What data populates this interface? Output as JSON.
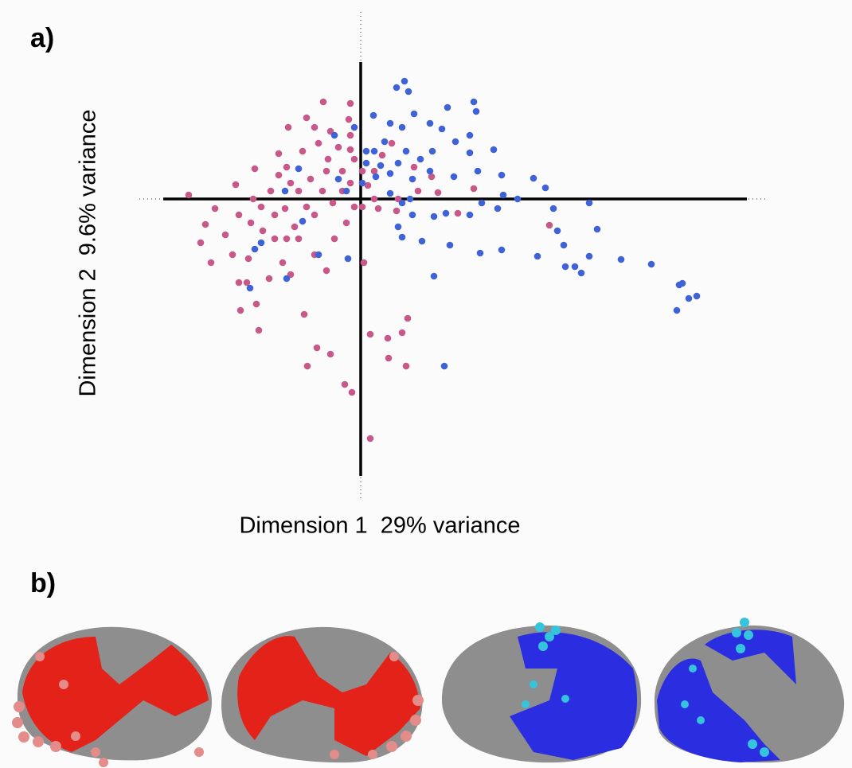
{
  "panel_a_label": "a)",
  "panel_b_label": "b)",
  "chart_data": {
    "type": "scatter",
    "xlabel": "Dimension 1  29% variance",
    "ylabel": "Dimension 2  9.6% variance",
    "xlim": [
      -278,
      512
    ],
    "ylim": [
      -380,
      235
    ],
    "series": [
      {
        "color": "#c9588a",
        "x": [
          -216,
          -47,
          -13,
          -68,
          -91,
          -103,
          -133,
          -157,
          -183,
          -195,
          -201,
          -188,
          -170,
          -161,
          -153,
          -151,
          -131,
          -128,
          -143,
          -115,
          -98,
          -123,
          -108,
          -95,
          -78,
          -63,
          -41,
          -28,
          -13,
          -15,
          -38,
          -53,
          -73,
          -93,
          -113,
          -135,
          -153,
          -138,
          -108,
          -83,
          -58,
          -35,
          -23,
          -48,
          -68,
          -78,
          -58,
          -43,
          -33,
          -18,
          -8,
          9,
          17,
          27,
          39,
          17,
          47,
          72,
          97,
          122,
          45,
          22,
          4,
          12,
          34,
          52,
          59,
          35,
          57,
          -38,
          -55,
          -67,
          -71,
          -20,
          -11,
          12,
          -8,
          2,
          -23,
          -43,
          -13,
          -58,
          -103,
          -88,
          -125,
          -141,
          -88,
          -93,
          -13,
          2,
          237,
          142,
          89,
          67
        ],
        "values": [
          5,
          122,
          120,
          102,
          90,
          57,
          38,
          18,
          -12,
          -32,
          -55,
          -80,
          -45,
          -70,
          -105,
          -140,
          -132,
          -165,
          -105,
          -100,
          -80,
          -40,
          -20,
          -12,
          10,
          25,
          50,
          65,
          80,
          100,
          85,
          70,
          60,
          40,
          10,
          0,
          -20,
          -30,
          -50,
          -35,
          -20,
          -5,
          10,
          10,
          -10,
          -50,
          -70,
          -90,
          -50,
          -30,
          -10,
          17,
          35,
          55,
          70,
          0,
          0,
          10,
          8,
          -18,
          -15,
          -12,
          -80,
          -170,
          -175,
          -168,
          -150,
          -200,
          -210,
          -195,
          -187,
          -210,
          -145,
          -233,
          -243,
          -301,
          50,
          35,
          35,
          35,
          62,
          90,
          30,
          20,
          -10,
          -75,
          -95,
          -50,
          20,
          -10,
          -33,
          13,
          28,
          40
        ]
      },
      {
        "color": "#3f63d6",
        "x": [
          55,
          45,
          60,
          142,
          109,
          67,
          87,
          37,
          16,
          52,
          102,
          145,
          137,
          119,
          167,
          137,
          90,
          75,
          57,
          30,
          17,
          7,
          19,
          37,
          47,
          65,
          87,
          117,
          147,
          177,
          217,
          232,
          179,
          197,
          152,
          137,
          107,
          92,
          65,
          52,
          37,
          47,
          52,
          77,
          112,
          150,
          177,
          222,
          255,
          242,
          247,
          287,
          297,
          287,
          257,
          269,
          277,
          327,
          365,
          400,
          404,
          412,
          422,
          397,
          105,
          92,
          -16,
          -53,
          -73,
          -93,
          -139,
          -125,
          -133,
          -95,
          -78,
          -33,
          -8,
          -18,
          -28,
          7,
          25,
          62,
          2,
          172
        ],
        "values": [
          148,
          140,
          135,
          122,
          115,
          107,
          95,
          95,
          105,
          90,
          88,
          110,
          80,
          72,
          62,
          58,
          60,
          50,
          60,
          72,
          60,
          45,
          28,
          32,
          45,
          25,
          35,
          28,
          35,
          30,
          26,
          14,
          5,
          0,
          -5,
          -20,
          -18,
          -22,
          -20,
          -5,
          7,
          -35,
          -48,
          -53,
          -58,
          -68,
          -64,
          -72,
          -58,
          -12,
          -40,
          -5,
          -38,
          -72,
          -85,
          -85,
          -93,
          -76,
          -82,
          -108,
          -106,
          -125,
          -122,
          -140,
          -210,
          -97,
          -75,
          -70,
          -28,
          -100,
          -112,
          -55,
          -63,
          10,
          38,
          80,
          90,
          10,
          25,
          60,
          42,
          0,
          20,
          -12
        ]
      }
    ]
  }
}
